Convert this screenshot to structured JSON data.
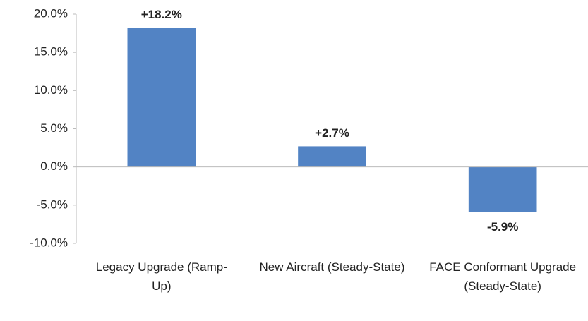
{
  "chart_data": {
    "type": "bar",
    "categories": [
      "Legacy Upgrade (Ramp-Up)",
      "New Aircraft (Steady-State)",
      "FACE Conformant Upgrade (Steady-State)"
    ],
    "values": [
      18.2,
      2.7,
      -5.9
    ],
    "value_labels": [
      "+18.2%",
      "+2.7%",
      "-5.9%"
    ],
    "color": "#5283c4",
    "ylim": [
      -10,
      20
    ],
    "yticks": [
      {
        "value": -10,
        "label": "-10.0%"
      },
      {
        "value": -5,
        "label": "-5.0%"
      },
      {
        "value": 0,
        "label": "0.0%"
      },
      {
        "value": 5,
        "label": "5.0%"
      },
      {
        "value": 10,
        "label": "10.0%"
      },
      {
        "value": 15,
        "label": "15.0%"
      },
      {
        "value": 20,
        "label": "20.0%"
      }
    ],
    "grid": false
  }
}
